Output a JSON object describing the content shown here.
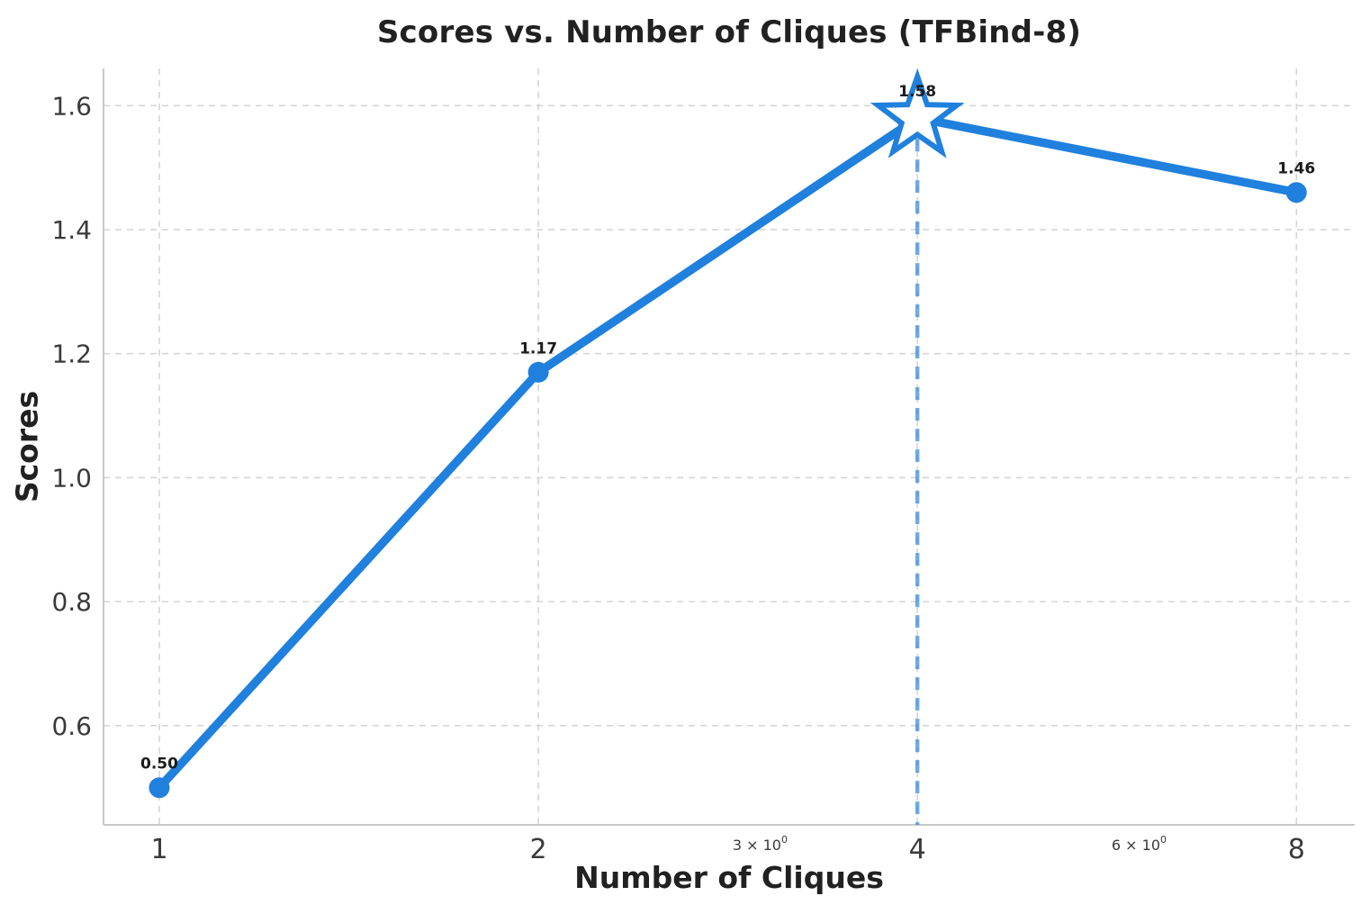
{
  "chart_data": {
    "type": "line",
    "title": "Scores vs. Number of Cliques (TFBind-8)",
    "xlabel": "Number of Cliques",
    "ylabel": "Scores",
    "x_scale": "log",
    "x": [
      1,
      2,
      4,
      8
    ],
    "y": [
      0.5,
      1.17,
      1.58,
      1.46
    ],
    "point_labels": [
      "0.50",
      "1.17",
      "1.58",
      "1.46"
    ],
    "best_point": {
      "x": 4,
      "y": 1.58,
      "marker": "star",
      "has_dashed_vline": true
    },
    "y_ticks": [
      {
        "value": 1.6,
        "label": "1.6"
      },
      {
        "value": 1.4,
        "label": "1.4"
      },
      {
        "value": 1.2,
        "label": "1.2"
      },
      {
        "value": 1.0,
        "label": "1.0"
      },
      {
        "value": 0.8,
        "label": "0.8"
      },
      {
        "value": 0.6,
        "label": "0.6"
      }
    ],
    "x_major_ticks": [
      {
        "value": 1,
        "label": "1"
      },
      {
        "value": 2,
        "label": "2"
      },
      {
        "value": 4,
        "label": "4"
      },
      {
        "value": 8,
        "label": "8"
      }
    ],
    "x_minor_ticks": [
      {
        "value": 3,
        "base": "3 × 10",
        "sup": "0"
      },
      {
        "value": 6,
        "base": "6 × 10",
        "sup": "0"
      }
    ],
    "xlim": [
      0.903,
      8.9
    ],
    "ylim": [
      0.44,
      1.66
    ],
    "grid": true,
    "legend": false,
    "colors": {
      "line": "#2080dd",
      "marker": "#2080dd",
      "star_stroke": "#2080dd",
      "star_fill": "#ffffff",
      "vline": "#2080dd",
      "grid": "#d5d5d5",
      "spine": "#c8c8c8",
      "tick_text": "#3a3a3a",
      "point_label_text": "#1c1c1c"
    }
  }
}
